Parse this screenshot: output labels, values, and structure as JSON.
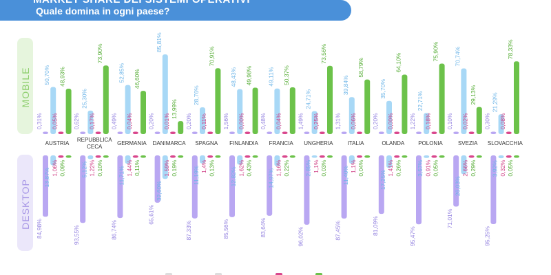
{
  "header": {
    "title_partial": "MARKET SHARE DEI SISTEMI OPERATIVI",
    "subtitle": "Quale domina in ogni paese?"
  },
  "panels": {
    "mobile_label": "MOBILE",
    "desktop_label": "DESKTOP"
  },
  "colors": {
    "os1": "#b9a7f2",
    "os2": "#a8d8f6",
    "os3": "#d9478d",
    "os4": "#6cc24a",
    "mobile_panel": "#e6f5dd",
    "desktop_panel": "#ebe7fa",
    "mobile_text": "#8fcf6f",
    "desktop_text": "#a898e6"
  },
  "chart_data": [
    {
      "type": "bar",
      "panel": "MOBILE",
      "categories": [
        "AUSTRIA",
        "REPUBBLICA CECA",
        "GERMANIA",
        "DANIMARCA",
        "SPAGNA",
        "FINLANDIA",
        "FRANCIA",
        "UNGHERIA",
        "ITALIA",
        "OLANDA",
        "POLONIA",
        "SVEZIA",
        "SLOVACCHIA"
      ],
      "series": [
        {
          "values": [
            0.31,
            0.62,
            0.49,
            0.2,
            0.2,
            1.56,
            0.48,
            1.49,
            1.31,
            0.2,
            1.22,
            0.1,
            0.3
          ],
          "labels": [
            "0,31%",
            "0,62%",
            "0,49%",
            "0,20%",
            "0,20%",
            "1,56%",
            "0,48%",
            "1,49%",
            "1,31%",
            "0,20%",
            "1,22%",
            "0,10%",
            "0,30%"
          ]
        },
        {
          "values": [
            50.7,
            25.3,
            52.85,
            85.81,
            28.76,
            48.43,
            49.11,
            24.71,
            39.84,
            35.7,
            22.71,
            70.74,
            21.29
          ],
          "labels": [
            "50,70%",
            "25,30%",
            "52,85%",
            "85,81%",
            "28,76%",
            "48,43%",
            "49,11%",
            "24,71%",
            "39,84%",
            "35,70%",
            "22,71%",
            "70,74%",
            "21,29%"
          ]
        },
        {
          "values": [
            0.05,
            0.17,
            0.04,
            0.01,
            0.11,
            0.0,
            0.04,
            0.25,
            0.06,
            0.0,
            0.18,
            0.02,
            0.08
          ],
          "labels": [
            "0,05%",
            "0,17%",
            "0,04%",
            "0,01%",
            "0,11%",
            "0,00%",
            "0,04%",
            "0,25%",
            "0,06%",
            "0,00%",
            "0,18%",
            "0,02%",
            "0,08%"
          ]
        },
        {
          "values": [
            48.93,
            73.9,
            46.6,
            13.99,
            70.91,
            49.98,
            50.37,
            73.56,
            58.79,
            64.1,
            75.9,
            29.13,
            78.33
          ],
          "labels": [
            "48,93%",
            "73,90%",
            "46,60%",
            "13,99%",
            "70,91%",
            "49,98%",
            "50,37%",
            "73,56%",
            "58,79%",
            "64,10%",
            "75,90%",
            "29,13%",
            "78,33%"
          ]
        }
      ]
    },
    {
      "type": "bar",
      "panel": "DESKTOP",
      "categories": [
        "AUSTRIA",
        "REPUBBLICA CECA",
        "GERMANIA",
        "DANIMARCA",
        "SPAGNA",
        "FINLANDIA",
        "FRANCIA",
        "UNGHERIA",
        "ITALIA",
        "OLANDA",
        "POLONIA",
        "SVEZIA",
        "SLOVACCHIA"
      ],
      "series": [
        {
          "values": [
            84.98,
            93.55,
            86.74,
            65.61,
            87.33,
            85.56,
            83.64,
            96.02,
            87.45,
            81.09,
            95.47,
            71.01,
            95.25
          ],
          "labels": [
            "84,98%",
            "93,55%",
            "86,74%",
            "65,61%",
            "87,33%",
            "85,56%",
            "83,64%",
            "96,02%",
            "87,45%",
            "81,09%",
            "95,47%",
            "71,01%",
            "95,25%"
          ]
        },
        {
          "values": [
            13.87,
            5.12,
            11.71,
            32.6,
            11.19,
            12.82,
            14.97,
            2.85,
            11.4,
            17.25,
            3.57,
            26.03,
            3.92
          ],
          "labels": [
            "13,87%",
            "5,12%",
            "11,71%",
            "32,60%",
            "11,19%",
            "12,82%",
            "14,97%",
            "2,85%",
            "11,40%",
            "17,25%",
            "3,57%",
            "26,03%",
            "3,92%"
          ]
        },
        {
          "values": [
            1.06,
            1.22,
            1.44,
            1.59,
            1.4,
            1.62,
            1.16,
            1.1,
            1.1,
            1.41,
            0.91,
            2.66,
            0.32
          ],
          "labels": [
            "1,06%",
            "1,22%",
            "1,44%",
            "1,59%",
            "1,4%",
            "1,62%",
            "1,16%",
            "1,1%",
            "1,1%",
            "1,41%",
            "0,91%",
            "2,66%",
            "0,32%"
          ]
        },
        {
          "values": [
            0.09,
            0.1,
            0.11,
            0.19,
            0.13,
            0.43,
            0.22,
            0.03,
            0.04,
            0.26,
            0.05,
            0.29,
            0.05
          ],
          "labels": [
            "0,09%",
            "0,10%",
            "0,11%",
            "0,19%",
            "0,13%",
            "0,43%",
            "0,22%",
            "0,03%",
            "0,04%",
            "0,26%",
            "0,05%",
            "0,29%",
            "0,05%"
          ]
        }
      ]
    }
  ]
}
